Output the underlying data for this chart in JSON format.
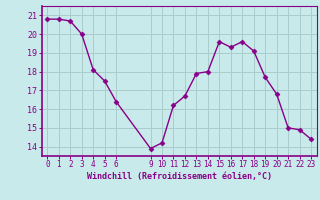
{
  "x": [
    0,
    1,
    2,
    3,
    4,
    5,
    6,
    9,
    10,
    11,
    12,
    13,
    14,
    15,
    16,
    17,
    18,
    19,
    20,
    21,
    22,
    23
  ],
  "y": [
    20.8,
    20.8,
    20.7,
    20.0,
    18.1,
    17.5,
    16.4,
    13.9,
    14.2,
    16.2,
    16.7,
    17.9,
    18.0,
    19.6,
    19.3,
    19.6,
    19.1,
    17.7,
    16.8,
    15.0,
    14.9,
    14.4
  ],
  "line_color": "#880088",
  "marker": "D",
  "marker_size": 2.5,
  "bg_color": "#c8eaea",
  "grid_color": "#aacccc",
  "xlabel": "Windchill (Refroidissement éolien,°C)",
  "xlim": [
    -0.5,
    23.5
  ],
  "ylim": [
    13.5,
    21.5
  ],
  "yticks": [
    14,
    15,
    16,
    17,
    18,
    19,
    20,
    21
  ],
  "xticks": [
    0,
    1,
    2,
    3,
    4,
    5,
    6,
    9,
    10,
    11,
    12,
    13,
    14,
    15,
    16,
    17,
    18,
    19,
    20,
    21,
    22,
    23
  ],
  "tick_color": "#880088",
  "label_color": "#880088",
  "spine_color": "#880088",
  "tick_fontsize": 5.5,
  "xlabel_fontsize": 6.0,
  "linewidth": 1.0
}
